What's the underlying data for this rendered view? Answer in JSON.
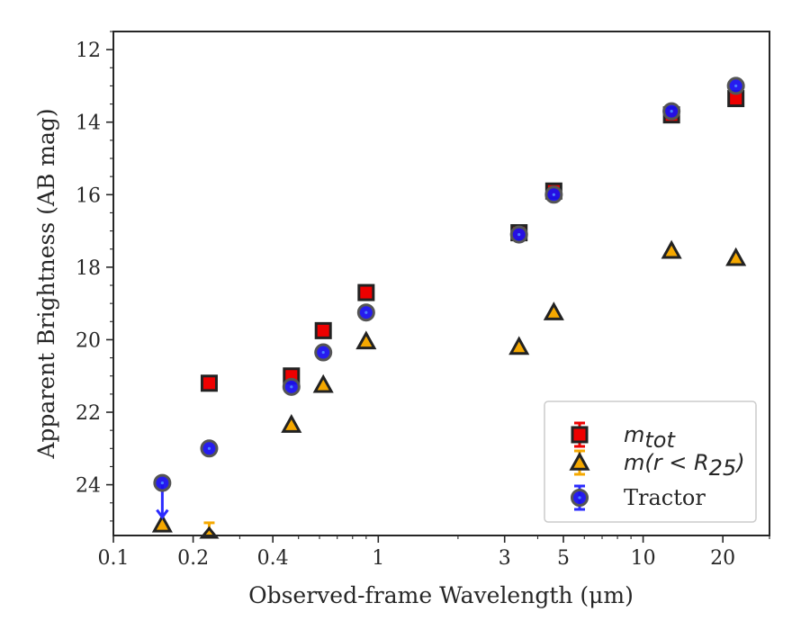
{
  "chart_data": {
    "type": "scatter",
    "title": "",
    "xlabel": "Observed-frame Wavelength (μm)",
    "ylabel": "Apparent Brightness (AB mag)",
    "xscale": "log",
    "yscale": "linear",
    "yinverted": true,
    "xlim": [
      0.1,
      30
    ],
    "ylim": [
      25.4,
      11.5
    ],
    "xticks": [
      0.1,
      0.2,
      0.4,
      1,
      3,
      5,
      10,
      20
    ],
    "xtick_labels": [
      "0.1",
      "0.2",
      "0.4",
      "1",
      "3",
      "5",
      "10",
      "20"
    ],
    "yticks": [
      12,
      14,
      16,
      18,
      20,
      22,
      24
    ],
    "ytick_labels": [
      "12",
      "14",
      "16",
      "18",
      "20",
      "22",
      "24"
    ],
    "grid": false,
    "legend_position": "lower-right",
    "series": [
      {
        "name_main": "m",
        "name_sub": "tot",
        "marker": "square",
        "color": "#ee0000",
        "edge_color": "#222222",
        "points": [
          {
            "x": 0.23,
            "y": 21.2
          },
          {
            "x": 0.47,
            "y": 21.0
          },
          {
            "x": 0.62,
            "y": 19.75
          },
          {
            "x": 0.9,
            "y": 18.7
          },
          {
            "x": 3.4,
            "y": 17.05
          },
          {
            "x": 4.6,
            "y": 15.9
          },
          {
            "x": 12.8,
            "y": 13.8
          },
          {
            "x": 22.4,
            "y": 13.35
          }
        ]
      },
      {
        "name_main": "m(r < R",
        "name_sub": "25",
        "name_tail": ")",
        "marker": "triangle",
        "color": "#f5a800",
        "edge_color": "#222222",
        "points": [
          {
            "x": 0.153,
            "y": 25.1
          },
          {
            "x": 0.23,
            "y": 25.4,
            "upper_limit": true
          },
          {
            "x": 0.47,
            "y": 22.35
          },
          {
            "x": 0.62,
            "y": 21.25
          },
          {
            "x": 0.9,
            "y": 20.05
          },
          {
            "x": 3.4,
            "y": 20.2
          },
          {
            "x": 4.6,
            "y": 19.25
          },
          {
            "x": 12.8,
            "y": 17.55
          },
          {
            "x": 22.4,
            "y": 17.75
          }
        ]
      },
      {
        "name_main": "Tractor",
        "marker": "circle",
        "color": "#1a10ee",
        "edge_color": "#555555",
        "points": [
          {
            "x": 0.153,
            "y": 23.95,
            "upper_limit": true
          },
          {
            "x": 0.23,
            "y": 23.0
          },
          {
            "x": 0.47,
            "y": 21.3
          },
          {
            "x": 0.62,
            "y": 20.35
          },
          {
            "x": 0.9,
            "y": 19.25
          },
          {
            "x": 3.4,
            "y": 17.1
          },
          {
            "x": 4.6,
            "y": 16.0
          },
          {
            "x": 12.8,
            "y": 13.7
          },
          {
            "x": 22.4,
            "y": 13.0
          }
        ]
      }
    ]
  }
}
